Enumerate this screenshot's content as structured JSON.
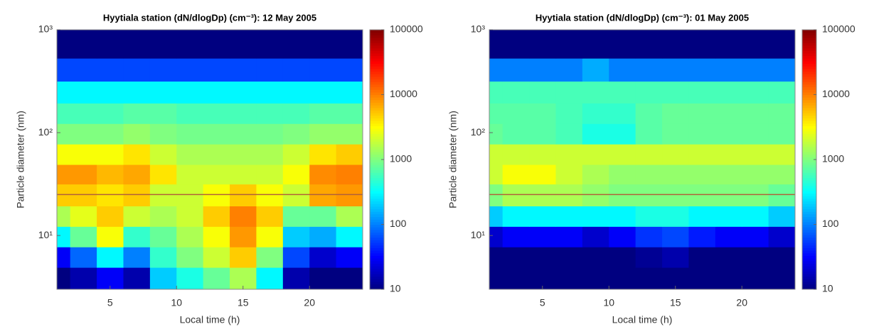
{
  "chart_data": [
    {
      "type": "heatmap",
      "title": "Hyytiala station (dN/dlogDp) (cm⁻³): 12 May 2005",
      "xlabel": "Local time (h)",
      "ylabel": "Particle diameter (nm)",
      "x": [
        1,
        3,
        5,
        7,
        9,
        11,
        13,
        15,
        17,
        19,
        21,
        23
      ],
      "y": [
        4,
        6,
        10,
        15,
        25,
        40,
        60,
        100,
        150,
        250,
        400,
        700
      ],
      "z": [
        [
          10,
          15,
          30,
          15,
          200,
          400,
          800,
          1500,
          300,
          15,
          10,
          10
        ],
        [
          30,
          80,
          300,
          100,
          500,
          1000,
          2000,
          5000,
          1000,
          60,
          20,
          30
        ],
        [
          300,
          800,
          3000,
          500,
          800,
          1500,
          3000,
          8000,
          3000,
          200,
          150,
          300
        ],
        [
          1500,
          2500,
          5000,
          2000,
          1500,
          2000,
          5000,
          10000,
          5000,
          800,
          800,
          1500
        ],
        [
          5000,
          5000,
          4000,
          5000,
          2000,
          2000,
          3000,
          5000,
          3000,
          2000,
          7000,
          8000
        ],
        [
          8000,
          8000,
          6000,
          7000,
          4000,
          2000,
          2000,
          2000,
          2000,
          3000,
          9000,
          10000
        ],
        [
          3000,
          3000,
          3000,
          4000,
          2000,
          1500,
          1500,
          1500,
          1500,
          2000,
          4000,
          5000
        ],
        [
          1000,
          1000,
          1000,
          1200,
          1000,
          900,
          900,
          900,
          900,
          1000,
          1200,
          1200
        ],
        [
          600,
          600,
          600,
          700,
          700,
          600,
          600,
          600,
          600,
          600,
          700,
          700
        ],
        [
          300,
          300,
          300,
          300,
          300,
          300,
          300,
          300,
          300,
          300,
          300,
          300
        ],
        [
          60,
          60,
          60,
          60,
          60,
          60,
          60,
          60,
          60,
          60,
          60,
          60
        ],
        [
          10,
          10,
          10,
          10,
          10,
          10,
          10,
          10,
          10,
          10,
          10,
          10
        ]
      ],
      "xlim": [
        1,
        24
      ],
      "xticks": [
        5,
        10,
        15,
        20
      ],
      "ylim": [
        3,
        1000
      ],
      "ylog": true,
      "yticks": [
        {
          "value": 10,
          "label": "10¹"
        },
        {
          "value": 100,
          "label": "10²"
        },
        {
          "value": 1000,
          "label": "10³"
        }
      ],
      "colormap": "jet",
      "clim": [
        10,
        100000
      ],
      "clog": true,
      "cticks": [
        10,
        100,
        1000,
        10000,
        100000
      ],
      "hline": 25,
      "hline_color": "#b0603a"
    },
    {
      "type": "heatmap",
      "title": "Hyytiala station (dN/dlogDp) (cm⁻³): 01 May 2005",
      "xlabel": "Local time (h)",
      "ylabel": "Particle diameter (nm)",
      "x": [
        1,
        3,
        5,
        7,
        9,
        11,
        13,
        15,
        17,
        19,
        21,
        23
      ],
      "y": [
        4,
        6,
        10,
        15,
        25,
        40,
        60,
        100,
        150,
        250,
        400,
        700
      ],
      "z": [
        [
          10,
          10,
          10,
          10,
          10,
          10,
          10,
          10,
          10,
          10,
          10,
          10
        ],
        [
          10,
          10,
          10,
          10,
          10,
          10,
          12,
          15,
          10,
          10,
          10,
          10
        ],
        [
          20,
          30,
          30,
          30,
          20,
          30,
          50,
          60,
          40,
          30,
          30,
          20
        ],
        [
          200,
          300,
          300,
          300,
          300,
          300,
          400,
          400,
          300,
          300,
          300,
          200
        ],
        [
          1000,
          1500,
          1500,
          1500,
          1200,
          1000,
          1000,
          1000,
          1000,
          1000,
          1000,
          800
        ],
        [
          2000,
          3000,
          3000,
          2000,
          1500,
          1200,
          1200,
          1200,
          1200,
          1200,
          1200,
          1200
        ],
        [
          2000,
          2000,
          2000,
          2000,
          2000,
          2000,
          2000,
          2000,
          2000,
          2000,
          2000,
          2000
        ],
        [
          800,
          700,
          700,
          600,
          400,
          400,
          700,
          800,
          800,
          800,
          800,
          800
        ],
        [
          700,
          700,
          700,
          600,
          500,
          500,
          700,
          800,
          800,
          800,
          800,
          800
        ],
        [
          600,
          600,
          600,
          600,
          600,
          600,
          600,
          600,
          600,
          600,
          600,
          600
        ],
        [
          100,
          100,
          100,
          100,
          150,
          100,
          100,
          100,
          100,
          100,
          100,
          100
        ],
        [
          10,
          10,
          10,
          10,
          10,
          10,
          10,
          10,
          10,
          10,
          10,
          10
        ]
      ],
      "xlim": [
        1,
        24
      ],
      "xticks": [
        5,
        10,
        15,
        20
      ],
      "ylim": [
        3,
        1000
      ],
      "ylog": true,
      "yticks": [
        {
          "value": 10,
          "label": "10¹"
        },
        {
          "value": 100,
          "label": "10²"
        },
        {
          "value": 1000,
          "label": "10³"
        }
      ],
      "colormap": "jet",
      "clim": [
        10,
        100000
      ],
      "clog": true,
      "cticks": [
        10,
        100,
        1000,
        10000,
        100000
      ],
      "hline": 25,
      "hline_color": "#b0603a"
    }
  ]
}
